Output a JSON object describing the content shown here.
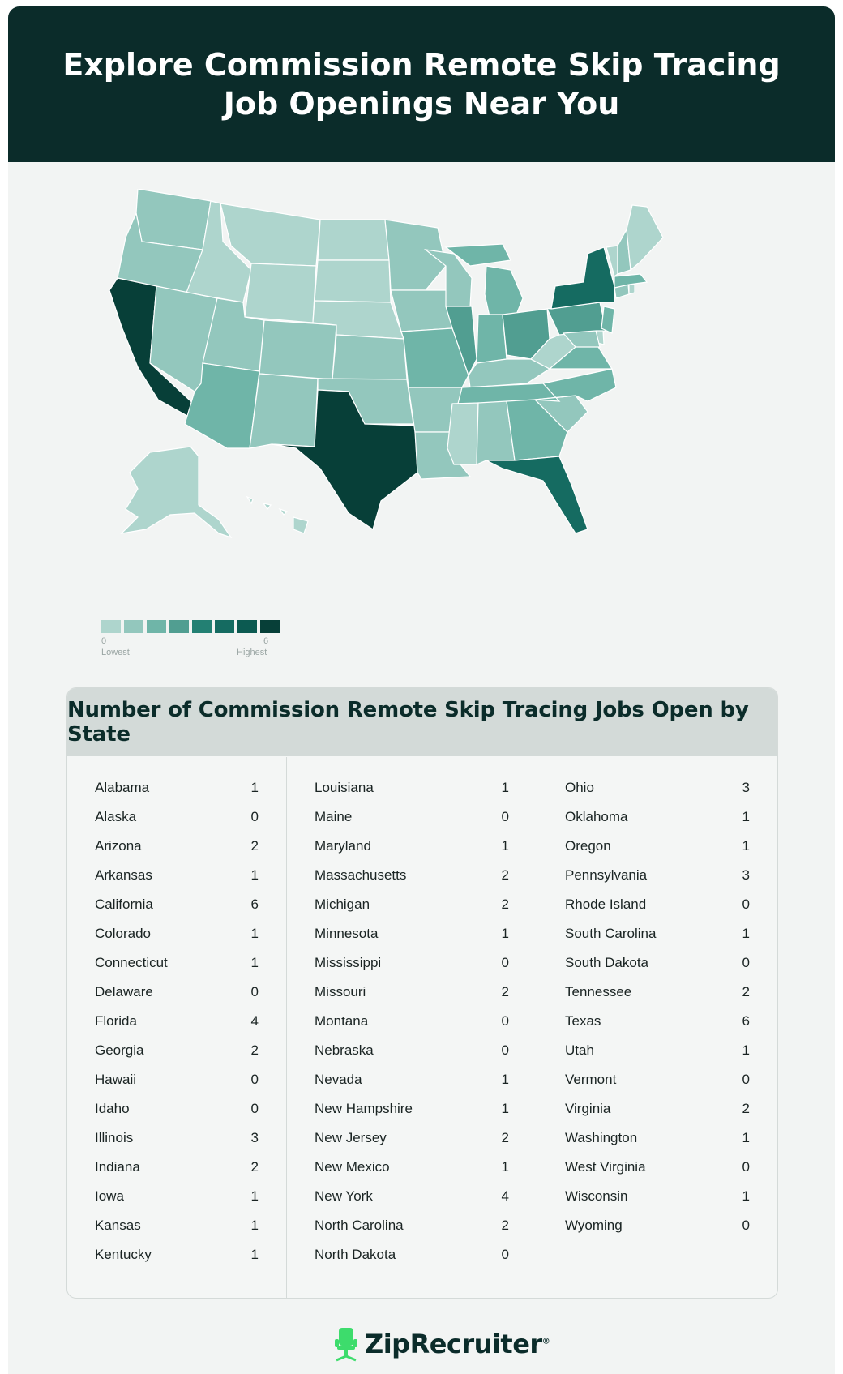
{
  "title": "Explore Commission Remote Skip Tracing Job Openings Near You",
  "colors": {
    "header_bg": "#0b2c2a",
    "scale": [
      "#aed5cd",
      "#93c7bd",
      "#6fb5a8",
      "#519e91",
      "#238073",
      "#156b61",
      "#0c5a51",
      "#073f38"
    ]
  },
  "legend": {
    "min": "0",
    "max": "6",
    "low_label": "Lowest",
    "high_label": "Highest"
  },
  "table": {
    "title": "Number of Commission Remote Skip Tracing Jobs Open by State",
    "columns": [
      [
        {
          "state": "Alabama",
          "count": "1"
        },
        {
          "state": "Alaska",
          "count": "0"
        },
        {
          "state": "Arizona",
          "count": "2"
        },
        {
          "state": "Arkansas",
          "count": "1"
        },
        {
          "state": "California",
          "count": "6"
        },
        {
          "state": "Colorado",
          "count": "1"
        },
        {
          "state": "Connecticut",
          "count": "1"
        },
        {
          "state": "Delaware",
          "count": "0"
        },
        {
          "state": "Florida",
          "count": "4"
        },
        {
          "state": "Georgia",
          "count": "2"
        },
        {
          "state": "Hawaii",
          "count": "0"
        },
        {
          "state": "Idaho",
          "count": "0"
        },
        {
          "state": "Illinois",
          "count": "3"
        },
        {
          "state": "Indiana",
          "count": "2"
        },
        {
          "state": "Iowa",
          "count": "1"
        },
        {
          "state": "Kansas",
          "count": "1"
        },
        {
          "state": "Kentucky",
          "count": "1"
        }
      ],
      [
        {
          "state": "Louisiana",
          "count": "1"
        },
        {
          "state": "Maine",
          "count": "0"
        },
        {
          "state": "Maryland",
          "count": "1"
        },
        {
          "state": "Massachusetts",
          "count": "2"
        },
        {
          "state": "Michigan",
          "count": "2"
        },
        {
          "state": "Minnesota",
          "count": "1"
        },
        {
          "state": "Mississippi",
          "count": "0"
        },
        {
          "state": "Missouri",
          "count": "2"
        },
        {
          "state": "Montana",
          "count": "0"
        },
        {
          "state": "Nebraska",
          "count": "0"
        },
        {
          "state": "Nevada",
          "count": "1"
        },
        {
          "state": "New Hampshire",
          "count": "1"
        },
        {
          "state": "New Jersey",
          "count": "2"
        },
        {
          "state": "New Mexico",
          "count": "1"
        },
        {
          "state": "New York",
          "count": "4"
        },
        {
          "state": "North Carolina",
          "count": "2"
        },
        {
          "state": "North Dakota",
          "count": "0"
        }
      ],
      [
        {
          "state": "Ohio",
          "count": "3"
        },
        {
          "state": "Oklahoma",
          "count": "1"
        },
        {
          "state": "Oregon",
          "count": "1"
        },
        {
          "state": "Pennsylvania",
          "count": "3"
        },
        {
          "state": "Rhode Island",
          "count": "0"
        },
        {
          "state": "South Carolina",
          "count": "1"
        },
        {
          "state": "South Dakota",
          "count": "0"
        },
        {
          "state": "Tennessee",
          "count": "2"
        },
        {
          "state": "Texas",
          "count": "6"
        },
        {
          "state": "Utah",
          "count": "1"
        },
        {
          "state": "Vermont",
          "count": "0"
        },
        {
          "state": "Virginia",
          "count": "2"
        },
        {
          "state": "Washington",
          "count": "1"
        },
        {
          "state": "West Virginia",
          "count": "0"
        },
        {
          "state": "Wisconsin",
          "count": "1"
        },
        {
          "state": "Wyoming",
          "count": "0"
        }
      ]
    ]
  },
  "brand": {
    "name": "ZipRecruiter",
    "registered": "®",
    "icon": "chair-logo-icon"
  }
}
